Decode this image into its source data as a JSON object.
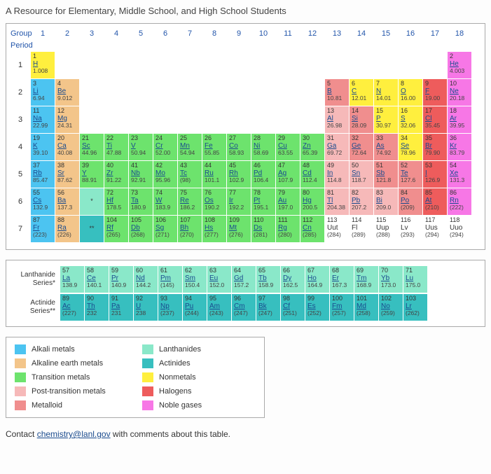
{
  "heading": "A Resource for Elementary, Middle School, and High School Students",
  "labels": {
    "group": "Group",
    "period": "Period"
  },
  "groups": [
    "1",
    "2",
    "3",
    "4",
    "5",
    "6",
    "7",
    "8",
    "9",
    "10",
    "11",
    "12",
    "13",
    "14",
    "15",
    "16",
    "17",
    "18"
  ],
  "periods": [
    "1",
    "2",
    "3",
    "4",
    "5",
    "6",
    "7"
  ],
  "colors": {
    "alkali": "#4cc4f1",
    "alkaline": "#f3c58a",
    "transition": "#6de36d",
    "posttrans": "#f6b9b9",
    "metalloid": "#f08e8e",
    "lanthanide": "#8ae8c9",
    "actinide": "#37bfbf",
    "nonmetal": "#ffef3e",
    "halogen": "#ee5c5c",
    "noble": "#f777e6",
    "border": "#aaaaaa",
    "link": "#1a4b8e",
    "text": "#333333",
    "bg": "#ffffff"
  },
  "elements": [
    {
      "n": 1,
      "s": "H",
      "m": "1.008",
      "p": 1,
      "g": 1,
      "c": "nonmetal"
    },
    {
      "n": 2,
      "s": "He",
      "m": "4.003",
      "p": 1,
      "g": 18,
      "c": "noble"
    },
    {
      "n": 3,
      "s": "Li",
      "m": "6.94",
      "p": 2,
      "g": 1,
      "c": "alkali"
    },
    {
      "n": 4,
      "s": "Be",
      "m": "9.012",
      "p": 2,
      "g": 2,
      "c": "alkaline"
    },
    {
      "n": 5,
      "s": "B",
      "m": "10.81",
      "p": 2,
      "g": 13,
      "c": "metalloid"
    },
    {
      "n": 6,
      "s": "C",
      "m": "12.01",
      "p": 2,
      "g": 14,
      "c": "nonmetal"
    },
    {
      "n": 7,
      "s": "N",
      "m": "14.01",
      "p": 2,
      "g": 15,
      "c": "nonmetal"
    },
    {
      "n": 8,
      "s": "O",
      "m": "16.00",
      "p": 2,
      "g": 16,
      "c": "nonmetal"
    },
    {
      "n": 9,
      "s": "F",
      "m": "19.00",
      "p": 2,
      "g": 17,
      "c": "halogen"
    },
    {
      "n": 10,
      "s": "Ne",
      "m": "20.18",
      "p": 2,
      "g": 18,
      "c": "noble"
    },
    {
      "n": 11,
      "s": "Na",
      "m": "22.99",
      "p": 3,
      "g": 1,
      "c": "alkali"
    },
    {
      "n": 12,
      "s": "Mg",
      "m": "24.31",
      "p": 3,
      "g": 2,
      "c": "alkaline"
    },
    {
      "n": 13,
      "s": "Al",
      "m": "26.98",
      "p": 3,
      "g": 13,
      "c": "posttrans"
    },
    {
      "n": 14,
      "s": "Si",
      "m": "28.09",
      "p": 3,
      "g": 14,
      "c": "metalloid"
    },
    {
      "n": 15,
      "s": "P",
      "m": "30.97",
      "p": 3,
      "g": 15,
      "c": "nonmetal"
    },
    {
      "n": 16,
      "s": "S",
      "m": "32.06",
      "p": 3,
      "g": 16,
      "c": "nonmetal"
    },
    {
      "n": 17,
      "s": "Cl",
      "m": "35.45",
      "p": 3,
      "g": 17,
      "c": "halogen"
    },
    {
      "n": 18,
      "s": "Ar",
      "m": "39.95",
      "p": 3,
      "g": 18,
      "c": "noble"
    },
    {
      "n": 19,
      "s": "K",
      "m": "39.10",
      "p": 4,
      "g": 1,
      "c": "alkali"
    },
    {
      "n": 20,
      "s": "Ca",
      "m": "40.08",
      "p": 4,
      "g": 2,
      "c": "alkaline"
    },
    {
      "n": 21,
      "s": "Sc",
      "m": "44.96",
      "p": 4,
      "g": 3,
      "c": "transition"
    },
    {
      "n": 22,
      "s": "Ti",
      "m": "47.88",
      "p": 4,
      "g": 4,
      "c": "transition"
    },
    {
      "n": 23,
      "s": "V",
      "m": "50.94",
      "p": 4,
      "g": 5,
      "c": "transition"
    },
    {
      "n": 24,
      "s": "Cr",
      "m": "52.00",
      "p": 4,
      "g": 6,
      "c": "transition"
    },
    {
      "n": 25,
      "s": "Mn",
      "m": "54.94",
      "p": 4,
      "g": 7,
      "c": "transition"
    },
    {
      "n": 26,
      "s": "Fe",
      "m": "55.85",
      "p": 4,
      "g": 8,
      "c": "transition"
    },
    {
      "n": 27,
      "s": "Co",
      "m": "58.93",
      "p": 4,
      "g": 9,
      "c": "transition"
    },
    {
      "n": 28,
      "s": "Ni",
      "m": "58.69",
      "p": 4,
      "g": 10,
      "c": "transition"
    },
    {
      "n": 29,
      "s": "Cu",
      "m": "63.55",
      "p": 4,
      "g": 11,
      "c": "transition"
    },
    {
      "n": 30,
      "s": "Zn",
      "m": "65.39",
      "p": 4,
      "g": 12,
      "c": "transition"
    },
    {
      "n": 31,
      "s": "Ga",
      "m": "69.72",
      "p": 4,
      "g": 13,
      "c": "posttrans"
    },
    {
      "n": 32,
      "s": "Ge",
      "m": "72.64",
      "p": 4,
      "g": 14,
      "c": "metalloid"
    },
    {
      "n": 33,
      "s": "As",
      "m": "74.92",
      "p": 4,
      "g": 15,
      "c": "metalloid"
    },
    {
      "n": 34,
      "s": "Se",
      "m": "78.96",
      "p": 4,
      "g": 16,
      "c": "nonmetal"
    },
    {
      "n": 35,
      "s": "Br",
      "m": "79.90",
      "p": 4,
      "g": 17,
      "c": "halogen"
    },
    {
      "n": 36,
      "s": "Kr",
      "m": "83.79",
      "p": 4,
      "g": 18,
      "c": "noble"
    },
    {
      "n": 37,
      "s": "Rb",
      "m": "85.47",
      "p": 5,
      "g": 1,
      "c": "alkali"
    },
    {
      "n": 38,
      "s": "Sr",
      "m": "87.62",
      "p": 5,
      "g": 2,
      "c": "alkaline"
    },
    {
      "n": 39,
      "s": "Y",
      "m": "88.91",
      "p": 5,
      "g": 3,
      "c": "transition"
    },
    {
      "n": 40,
      "s": "Zr",
      "m": "91.22",
      "p": 5,
      "g": 4,
      "c": "transition"
    },
    {
      "n": 41,
      "s": "Nb",
      "m": "92.91",
      "p": 5,
      "g": 5,
      "c": "transition"
    },
    {
      "n": 42,
      "s": "Mo",
      "m": "95.96",
      "p": 5,
      "g": 6,
      "c": "transition"
    },
    {
      "n": 43,
      "s": "Tc",
      "m": "(98)",
      "p": 5,
      "g": 7,
      "c": "transition"
    },
    {
      "n": 44,
      "s": "Ru",
      "m": "101.1",
      "p": 5,
      "g": 8,
      "c": "transition"
    },
    {
      "n": 45,
      "s": "Rh",
      "m": "102.9",
      "p": 5,
      "g": 9,
      "c": "transition"
    },
    {
      "n": 46,
      "s": "Pd",
      "m": "106.4",
      "p": 5,
      "g": 10,
      "c": "transition"
    },
    {
      "n": 47,
      "s": "Ag",
      "m": "107.9",
      "p": 5,
      "g": 11,
      "c": "transition"
    },
    {
      "n": 48,
      "s": "Cd",
      "m": "112.4",
      "p": 5,
      "g": 12,
      "c": "transition"
    },
    {
      "n": 49,
      "s": "In",
      "m": "114.8",
      "p": 5,
      "g": 13,
      "c": "posttrans"
    },
    {
      "n": 50,
      "s": "Sn",
      "m": "118.7",
      "p": 5,
      "g": 14,
      "c": "posttrans"
    },
    {
      "n": 51,
      "s": "Sb",
      "m": "121.8",
      "p": 5,
      "g": 15,
      "c": "metalloid"
    },
    {
      "n": 52,
      "s": "Te",
      "m": "127.6",
      "p": 5,
      "g": 16,
      "c": "metalloid"
    },
    {
      "n": 53,
      "s": "I",
      "m": "126.9",
      "p": 5,
      "g": 17,
      "c": "halogen"
    },
    {
      "n": 54,
      "s": "Xe",
      "m": "131.3",
      "p": 5,
      "g": 18,
      "c": "noble"
    },
    {
      "n": 55,
      "s": "Cs",
      "m": "132.9",
      "p": 6,
      "g": 1,
      "c": "alkali"
    },
    {
      "n": 56,
      "s": "Ba",
      "m": "137.3",
      "p": 6,
      "g": 2,
      "c": "alkaline"
    },
    {
      "n": 72,
      "s": "Hf",
      "m": "178.5",
      "p": 6,
      "g": 4,
      "c": "transition"
    },
    {
      "n": 73,
      "s": "Ta",
      "m": "180.9",
      "p": 6,
      "g": 5,
      "c": "transition"
    },
    {
      "n": 74,
      "s": "W",
      "m": "183.9",
      "p": 6,
      "g": 6,
      "c": "transition"
    },
    {
      "n": 75,
      "s": "Re",
      "m": "186.2",
      "p": 6,
      "g": 7,
      "c": "transition"
    },
    {
      "n": 76,
      "s": "Os",
      "m": "190.2",
      "p": 6,
      "g": 8,
      "c": "transition"
    },
    {
      "n": 77,
      "s": "Ir",
      "m": "192.2",
      "p": 6,
      "g": 9,
      "c": "transition"
    },
    {
      "n": 78,
      "s": "Pt",
      "m": "195.1",
      "p": 6,
      "g": 10,
      "c": "transition"
    },
    {
      "n": 79,
      "s": "Au",
      "m": "197.0",
      "p": 6,
      "g": 11,
      "c": "transition"
    },
    {
      "n": 80,
      "s": "Hg",
      "m": "200.5",
      "p": 6,
      "g": 12,
      "c": "transition"
    },
    {
      "n": 81,
      "s": "Tl",
      "m": "204.38",
      "p": 6,
      "g": 13,
      "c": "posttrans"
    },
    {
      "n": 82,
      "s": "Pb",
      "m": "207.2",
      "p": 6,
      "g": 14,
      "c": "posttrans"
    },
    {
      "n": 83,
      "s": "Bi",
      "m": "209.0",
      "p": 6,
      "g": 15,
      "c": "posttrans"
    },
    {
      "n": 84,
      "s": "Po",
      "m": "(209)",
      "p": 6,
      "g": 16,
      "c": "metalloid"
    },
    {
      "n": 85,
      "s": "At",
      "m": "(210)",
      "p": 6,
      "g": 17,
      "c": "halogen"
    },
    {
      "n": 86,
      "s": "Rn",
      "m": "(222)",
      "p": 6,
      "g": 18,
      "c": "noble"
    },
    {
      "n": 87,
      "s": "Fr",
      "m": "(223)",
      "p": 7,
      "g": 1,
      "c": "alkali"
    },
    {
      "n": 88,
      "s": "Ra",
      "m": "(226)",
      "p": 7,
      "g": 2,
      "c": "alkaline"
    },
    {
      "n": 104,
      "s": "Rf",
      "m": "(265)",
      "p": 7,
      "g": 4,
      "c": "transition"
    },
    {
      "n": 105,
      "s": "Db",
      "m": "(268)",
      "p": 7,
      "g": 5,
      "c": "transition"
    },
    {
      "n": 106,
      "s": "Sg",
      "m": "(271)",
      "p": 7,
      "g": 6,
      "c": "transition"
    },
    {
      "n": 107,
      "s": "Bh",
      "m": "(270)",
      "p": 7,
      "g": 7,
      "c": "transition"
    },
    {
      "n": 108,
      "s": "Hs",
      "m": "(277)",
      "p": 7,
      "g": 8,
      "c": "transition"
    },
    {
      "n": 109,
      "s": "Mt",
      "m": "(276)",
      "p": 7,
      "g": 9,
      "c": "transition"
    },
    {
      "n": 110,
      "s": "Ds",
      "m": "(281)",
      "p": 7,
      "g": 10,
      "c": "transition"
    },
    {
      "n": 111,
      "s": "Rg",
      "m": "(280)",
      "p": 7,
      "g": 11,
      "c": "transition"
    },
    {
      "n": 112,
      "s": "Cn",
      "m": "(285)",
      "p": 7,
      "g": 12,
      "c": "transition"
    },
    {
      "n": 113,
      "s": "Uut",
      "m": "(284)",
      "p": 7,
      "g": 13,
      "c": "none"
    },
    {
      "n": 114,
      "s": "Fl",
      "m": "(289)",
      "p": 7,
      "g": 14,
      "c": "none"
    },
    {
      "n": 115,
      "s": "Uup",
      "m": "(288)",
      "p": 7,
      "g": 15,
      "c": "none"
    },
    {
      "n": 116,
      "s": "Lv",
      "m": "(293)",
      "p": 7,
      "g": 16,
      "c": "none"
    },
    {
      "n": 117,
      "s": "Uus",
      "m": "(294)",
      "p": 7,
      "g": 17,
      "c": "none"
    },
    {
      "n": 118,
      "s": "Uuo",
      "m": "(294)",
      "p": 7,
      "g": 18,
      "c": "none"
    }
  ],
  "placeholders": [
    {
      "p": 6,
      "g": 3,
      "text": "*",
      "c": "lanthanide"
    },
    {
      "p": 7,
      "g": 3,
      "text": "**",
      "c": "actinide"
    }
  ],
  "series": {
    "lanth_label": "Lanthanide Series*",
    "act_label": "Actinide Series**",
    "lanthanides": [
      {
        "n": 57,
        "s": "La",
        "m": "138.9"
      },
      {
        "n": 58,
        "s": "Ce",
        "m": "140.1"
      },
      {
        "n": 59,
        "s": "Pr",
        "m": "140.9"
      },
      {
        "n": 60,
        "s": "Nd",
        "m": "144.2"
      },
      {
        "n": 61,
        "s": "Pm",
        "m": "(145)"
      },
      {
        "n": 62,
        "s": "Sm",
        "m": "150.4"
      },
      {
        "n": 63,
        "s": "Eu",
        "m": "152.0"
      },
      {
        "n": 64,
        "s": "Gd",
        "m": "157.2"
      },
      {
        "n": 65,
        "s": "Tb",
        "m": "158.9"
      },
      {
        "n": 66,
        "s": "Dy",
        "m": "162.5"
      },
      {
        "n": 67,
        "s": "Ho",
        "m": "164.9"
      },
      {
        "n": 68,
        "s": "Er",
        "m": "167.3"
      },
      {
        "n": 69,
        "s": "Tm",
        "m": "168.9"
      },
      {
        "n": 70,
        "s": "Yb",
        "m": "173.0"
      },
      {
        "n": 71,
        "s": "Lu",
        "m": "175.0"
      }
    ],
    "actinides": [
      {
        "n": 89,
        "s": "Ac",
        "m": "(227)"
      },
      {
        "n": 90,
        "s": "Th",
        "m": "232"
      },
      {
        "n": 91,
        "s": "Pa",
        "m": "231"
      },
      {
        "n": 92,
        "s": "U",
        "m": "238"
      },
      {
        "n": 93,
        "s": "Np",
        "m": "(237)"
      },
      {
        "n": 94,
        "s": "Pu",
        "m": "(244)"
      },
      {
        "n": 95,
        "s": "Am",
        "m": "(243)"
      },
      {
        "n": 96,
        "s": "Cm",
        "m": "(247)"
      },
      {
        "n": 97,
        "s": "Bk",
        "m": "(247)"
      },
      {
        "n": 98,
        "s": "Cf",
        "m": "(251)"
      },
      {
        "n": 99,
        "s": "Es",
        "m": "(252)"
      },
      {
        "n": 100,
        "s": "Fm",
        "m": "(257)"
      },
      {
        "n": 101,
        "s": "Md",
        "m": "(258)"
      },
      {
        "n": 102,
        "s": "No",
        "m": "(259)"
      },
      {
        "n": 103,
        "s": "Lr",
        "m": "(262)"
      }
    ]
  },
  "legend": [
    {
      "c": "alkali",
      "label": "Alkali metals"
    },
    {
      "c": "lanthanide",
      "label": "Lanthanides"
    },
    {
      "c": "alkaline",
      "label": "Alkaline earth metals"
    },
    {
      "c": "actinide",
      "label": "Actinides"
    },
    {
      "c": "transition",
      "label": "Transition metals"
    },
    {
      "c": "nonmetal",
      "label": "Nonmetals"
    },
    {
      "c": "posttrans",
      "label": "Post-transition metals"
    },
    {
      "c": "halogen",
      "label": "Halogens"
    },
    {
      "c": "metalloid",
      "label": "Metalloid"
    },
    {
      "c": "noble",
      "label": "Noble gases"
    }
  ],
  "footer": {
    "prefix": "Contact ",
    "email": "chemistry@lanl.gov",
    "suffix": " with comments about this table."
  }
}
